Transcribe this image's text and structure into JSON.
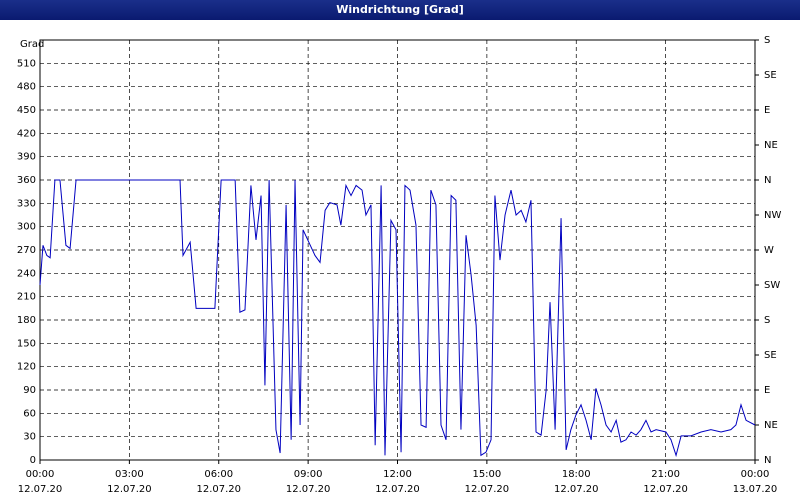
{
  "chart_data": {
    "type": "line",
    "title": "Windrichtung [Grad]",
    "y_label": "Grad",
    "x": [
      0,
      0.1,
      0.23,
      0.34,
      0.5,
      0.67,
      0.87,
      1.01,
      1.21,
      4.7,
      4.8,
      5.04,
      5.24,
      5.87,
      6.08,
      6.55,
      6.71,
      6.88,
      7.08,
      7.25,
      7.42,
      7.55,
      7.69,
      7.92,
      8.06,
      8.26,
      8.43,
      8.56,
      8.73,
      8.83,
      9.23,
      9.4,
      9.57,
      9.73,
      9.97,
      10.1,
      10.27,
      10.44,
      10.61,
      10.81,
      10.94,
      11.11,
      11.25,
      11.45,
      11.58,
      11.78,
      11.95,
      12.12,
      12.25,
      12.42,
      12.62,
      12.79,
      12.96,
      13.12,
      13.29,
      13.46,
      13.63,
      13.8,
      13.96,
      14.13,
      14.3,
      14.47,
      14.64,
      14.8,
      14.97,
      15.14,
      15.27,
      15.44,
      15.61,
      15.81,
      15.98,
      16.15,
      16.31,
      16.48,
      16.65,
      16.82,
      16.99,
      17.12,
      17.29,
      17.49,
      17.66,
      17.82,
      17.99,
      18.16,
      18.33,
      18.5,
      18.66,
      18.83,
      19.0,
      19.17,
      19.34,
      19.5,
      19.67,
      19.84,
      20.01,
      20.17,
      20.34,
      20.51,
      20.68,
      21.01,
      21.18,
      21.35,
      21.52,
      21.85,
      22.19,
      22.52,
      22.86,
      23.19,
      23.36,
      23.53,
      23.7,
      24
    ],
    "series": [
      {
        "color": "#0000c0",
        "values": [
          225,
          276,
          263,
          260,
          360,
          360,
          276,
          272,
          360,
          360,
          263,
          280,
          195,
          195,
          360,
          360,
          190,
          193,
          353,
          283,
          340,
          96,
          360,
          39,
          9,
          328,
          26,
          360,
          45,
          296,
          263,
          254,
          321,
          331,
          328,
          302,
          353,
          340,
          353,
          347,
          315,
          328,
          19,
          353,
          6,
          308,
          296,
          10,
          353,
          347,
          302,
          45,
          42,
          347,
          328,
          45,
          26,
          340,
          334,
          39,
          289,
          238,
          173,
          6,
          10,
          26,
          340,
          257,
          315,
          347,
          315,
          321,
          306,
          334,
          36,
          32,
          90,
          203,
          39,
          311,
          13,
          39,
          58,
          71,
          51,
          26,
          92,
          71,
          45,
          36,
          51,
          23,
          26,
          36,
          32,
          39,
          51,
          36,
          39,
          36,
          26,
          6,
          31,
          31,
          36,
          39,
          36,
          39,
          45,
          71,
          51,
          45
        ]
      }
    ],
    "xlim": [
      0,
      24
    ],
    "xticks": [
      {
        "value": 0,
        "label": "00:00"
      },
      {
        "value": 3,
        "label": "03:00"
      },
      {
        "value": 6,
        "label": "06:00"
      },
      {
        "value": 9,
        "label": "09:00"
      },
      {
        "value": 12,
        "label": "12:00"
      },
      {
        "value": 15,
        "label": "15:00"
      },
      {
        "value": 18,
        "label": "18:00"
      },
      {
        "value": 21,
        "label": "21:00"
      },
      {
        "value": 24,
        "label": "00:00"
      }
    ],
    "xtick_dates": [
      "12.07.20",
      "12.07.20",
      "12.07.20",
      "12.07.20",
      "12.07.20",
      "12.07.20",
      "12.07.20",
      "12.07.20",
      "13.07.20"
    ],
    "ylim": [
      0,
      540
    ],
    "yticks": [
      0,
      30,
      60,
      90,
      120,
      150,
      180,
      210,
      240,
      270,
      300,
      330,
      360,
      390,
      420,
      450,
      480,
      510
    ],
    "y2lim": [
      0,
      540
    ],
    "y2ticks": [
      {
        "value": 0,
        "label": "N"
      },
      {
        "value": 45,
        "label": "NE"
      },
      {
        "value": 90,
        "label": "E"
      },
      {
        "value": 135,
        "label": "SE"
      },
      {
        "value": 180,
        "label": "S"
      },
      {
        "value": 225,
        "label": "SW"
      },
      {
        "value": 270,
        "label": "W"
      },
      {
        "value": 315,
        "label": "NW"
      },
      {
        "value": 360,
        "label": "N"
      },
      {
        "value": 405,
        "label": "NE"
      },
      {
        "value": 450,
        "label": "E"
      },
      {
        "value": 495,
        "label": "SE"
      },
      {
        "value": 540,
        "label": "S"
      }
    ],
    "grid": true
  }
}
